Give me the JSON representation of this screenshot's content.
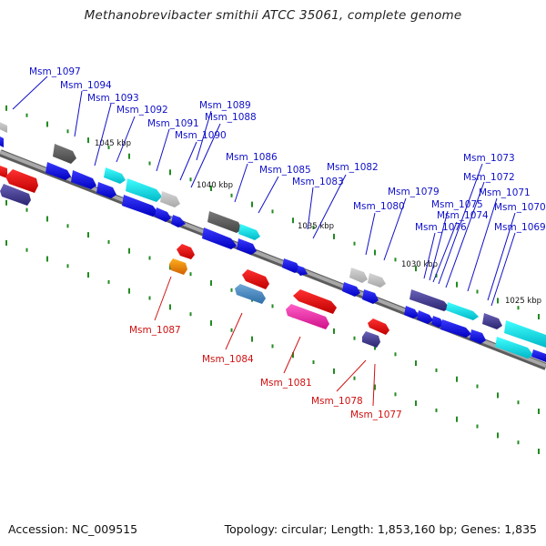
{
  "title": "Methanobrevibacter smithii ATCC 35061, complete genome",
  "footer": {
    "accession": "Accession: NC_009515",
    "summary": "Topology: circular; Length: 1,853,160 bp; Genes: 1,835"
  },
  "colors": {
    "forward_label": "#1010c8",
    "reverse_label": "#d01010",
    "backbone": "#8a8a8a",
    "tick": "#228b22"
  },
  "kbp_marks": [
    "1045 kbp",
    "1040 kbp",
    "1035 kbp",
    "1030 kbp",
    "1025 kbp"
  ],
  "forward_labels": [
    "Msm_1097",
    "Msm_1094",
    "Msm_1093",
    "Msm_1092",
    "Msm_1091",
    "Msm_1090",
    "Msm_1089",
    "Msm_1088",
    "Msm_1086",
    "Msm_1085",
    "Msm_1083",
    "Msm_1082",
    "Msm_1080",
    "Msm_1079",
    "Msm_1076",
    "Msm_1075",
    "Msm_1074",
    "Msm_1073",
    "Msm_1072",
    "Msm_1071",
    "Msm_1070",
    "Msm_1069"
  ],
  "reverse_labels": [
    "Msm_1087",
    "Msm_1084",
    "Msm_1081",
    "Msm_1078",
    "Msm_1077"
  ]
}
